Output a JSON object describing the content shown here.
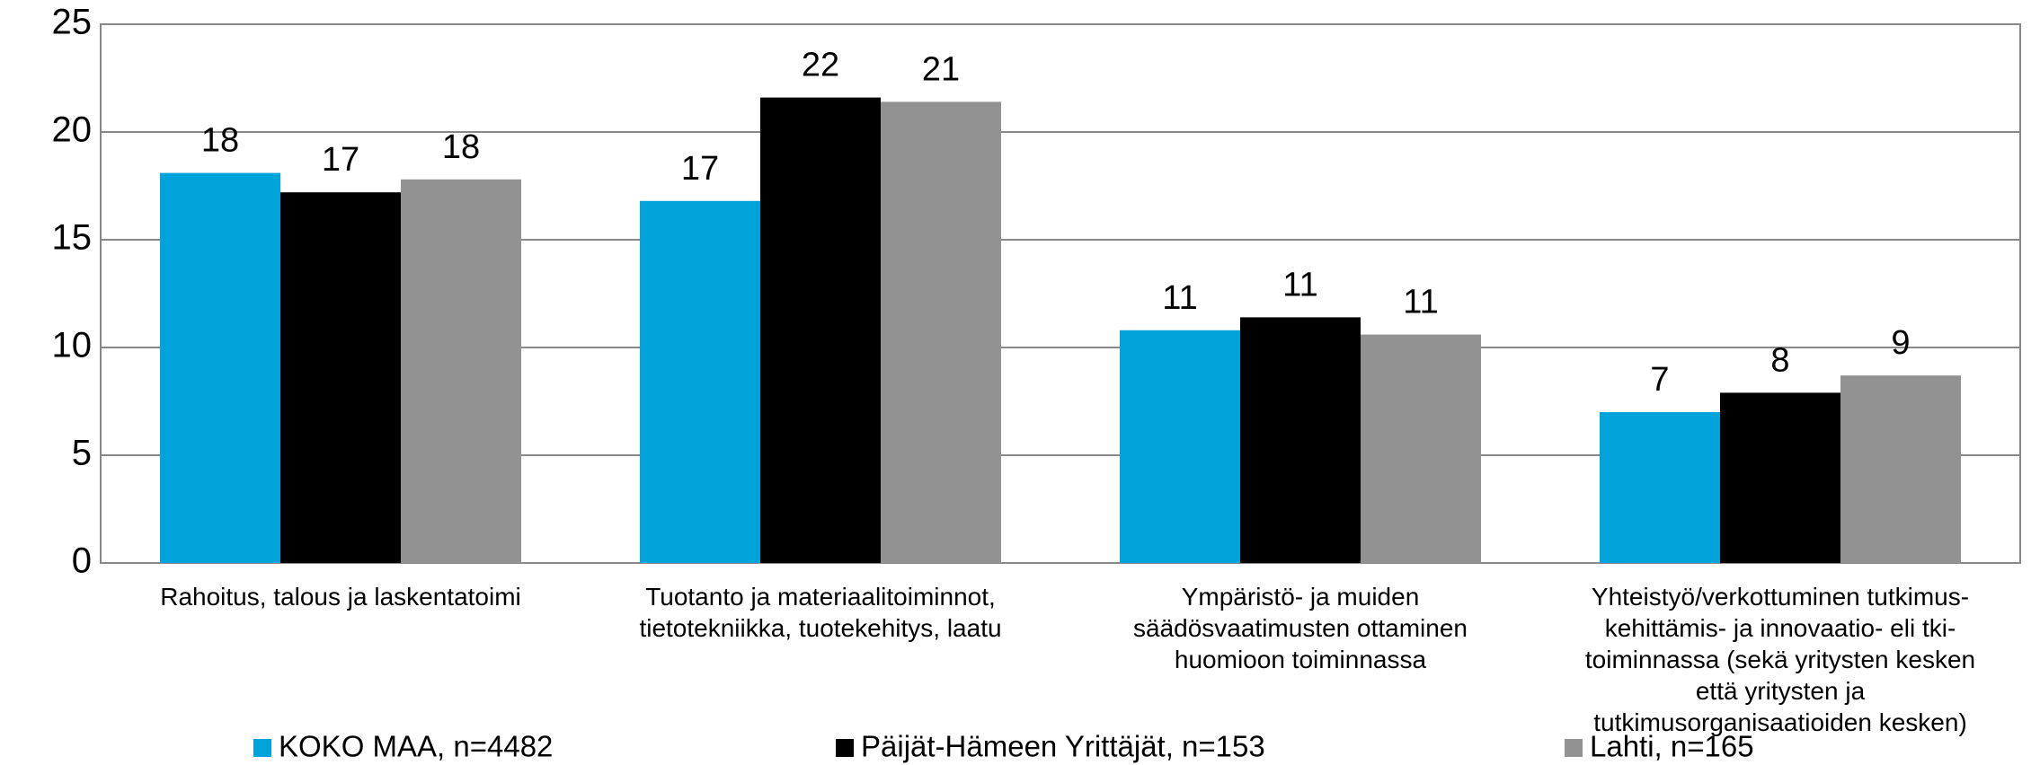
{
  "chart_data": {
    "type": "bar",
    "categories": [
      [
        "Rahoitus, talous ja laskentatoimi"
      ],
      [
        "Tuotanto ja materiaalitoiminnot,",
        "tietotekniikka, tuotekehitys, laatu"
      ],
      [
        "Ympäristö- ja muiden",
        "säädösvaatimusten ottaminen",
        "huomioon toiminnassa"
      ],
      [
        "Yhteistyö/verkottuminen tutkimus-",
        "kehittämis- ja innovaatio- eli tki-",
        "toiminnassa (sekä yritysten kesken",
        "että yritysten ja",
        "tutkimusorganisaatioiden kesken)"
      ]
    ],
    "series": [
      {
        "name": "KOKO MAA, n=4482",
        "color": "#00a3da",
        "values": [
          18.1,
          16.8,
          10.8,
          7.0
        ],
        "value_labels": [
          "18",
          "17",
          "11",
          "7"
        ]
      },
      {
        "name": "Päijät-Hämeen Yrittäjät, n=153",
        "color": "#000000",
        "values": [
          17.2,
          21.6,
          11.4,
          7.9
        ],
        "value_labels": [
          "17",
          "22",
          "11",
          "8"
        ]
      },
      {
        "name": "Lahti, n=165",
        "color": "#929292",
        "values": [
          17.8,
          21.4,
          10.6,
          8.7
        ],
        "value_labels": [
          "18",
          "21",
          "11",
          "9"
        ]
      }
    ],
    "ylim": [
      0,
      25
    ],
    "yticks": [
      0,
      5,
      10,
      15,
      20,
      25
    ],
    "grid": true,
    "legend": "bottom"
  }
}
